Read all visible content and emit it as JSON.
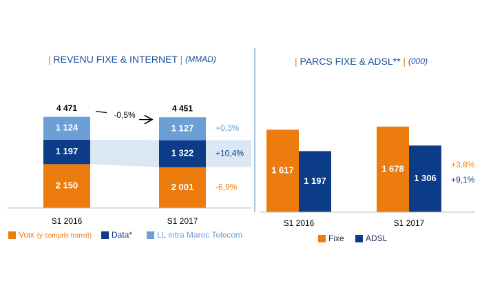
{
  "chart_data": [
    {
      "type": "stacked_bar",
      "title": "REVENU FIXE & INTERNET",
      "unit": "(MMAD)",
      "categories": [
        "S1 2016",
        "S1 2017"
      ],
      "series": [
        {
          "name": "Voix",
          "legend_note": "(y compris transit)",
          "color": "#ec7c0e",
          "values": [
            2150,
            2001
          ],
          "value_labels": [
            "2 150",
            "2 001"
          ],
          "change": "-6,9%"
        },
        {
          "name": "Data*",
          "color": "#0c3b87",
          "values": [
            1197,
            1322
          ],
          "value_labels": [
            "1 197",
            "1 322"
          ],
          "change": "+10,4%"
        },
        {
          "name": "LL intra Maroc Telecom",
          "color": "#6c9fd6",
          "values": [
            1124,
            1127
          ],
          "value_labels": [
            "1 124",
            "1 127"
          ],
          "change": "+0,3%"
        }
      ],
      "totals": {
        "values": [
          4471,
          4451
        ],
        "value_labels": [
          "4 471",
          "4 451"
        ],
        "change": "-0,5%"
      },
      "ylim": [
        0,
        5000
      ]
    },
    {
      "type": "grouped_bar",
      "title": "PARCS FIXE & ADSL**",
      "unit": "(000)",
      "categories": [
        "S1 2016",
        "S1 2017"
      ],
      "series": [
        {
          "name": "Fixe",
          "color": "#ec7c0e",
          "values": [
            1617,
            1678
          ],
          "value_labels": [
            "1 617",
            "1 678"
          ],
          "change": "+3,8%"
        },
        {
          "name": "ADSL",
          "color": "#0c3b87",
          "values": [
            1197,
            1306
          ],
          "value_labels": [
            "1 197",
            "1 306"
          ],
          "change": "+9,1%"
        }
      ],
      "ylim": [
        0,
        2000
      ]
    }
  ]
}
